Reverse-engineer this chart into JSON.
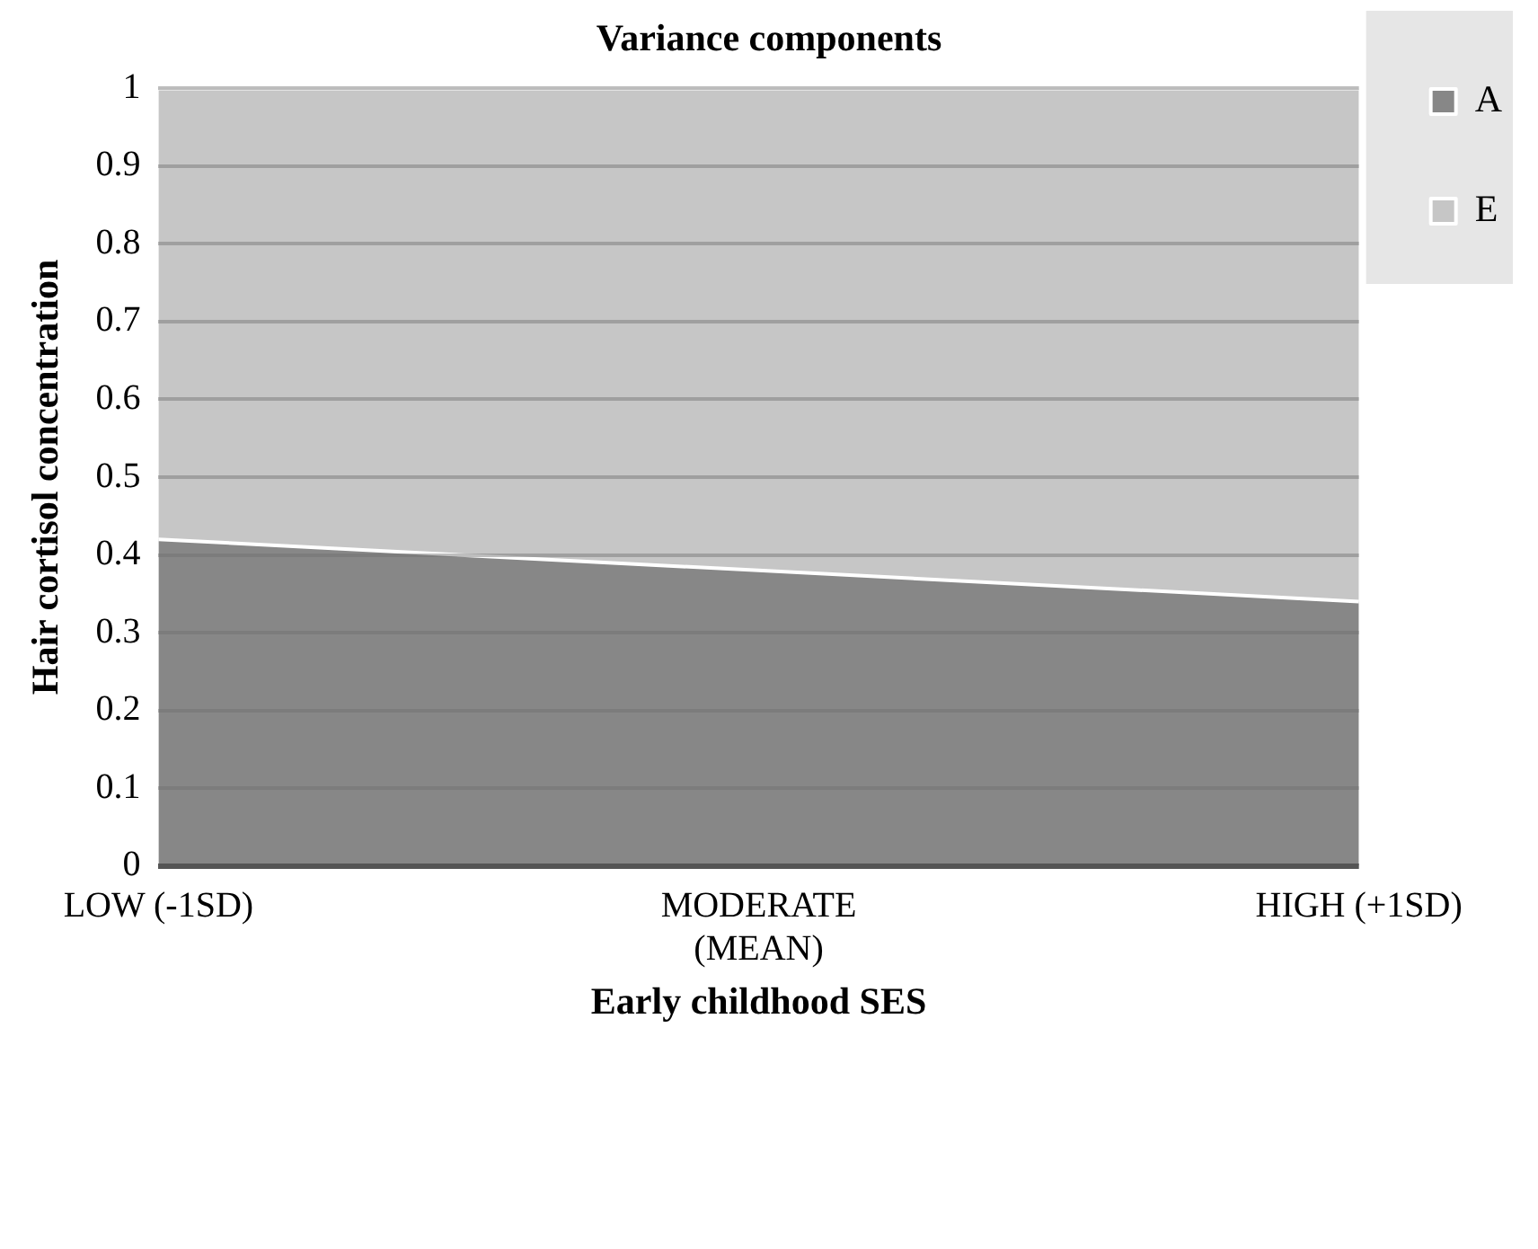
{
  "chart_data": {
    "type": "area",
    "title": "Variance components",
    "xlabel": "Early childhood SES",
    "ylabel": "Hair cortisol concentration",
    "categories": [
      "LOW (-1SD)",
      "MODERATE (MEAN)",
      "HIGH (+1SD)"
    ],
    "stacked": true,
    "series": [
      {
        "name": "A",
        "color": "#878787",
        "values": [
          0.42,
          0.38,
          0.34
        ]
      },
      {
        "name": "E",
        "color": "#c6c6c6",
        "values": [
          0.58,
          0.62,
          0.66
        ]
      }
    ],
    "ylim": [
      0,
      1
    ],
    "yticks": [
      0,
      0.1,
      0.2,
      0.3,
      0.4,
      0.5,
      0.6,
      0.7,
      0.8,
      0.9,
      1
    ],
    "grid": "y",
    "legend": "right"
  }
}
